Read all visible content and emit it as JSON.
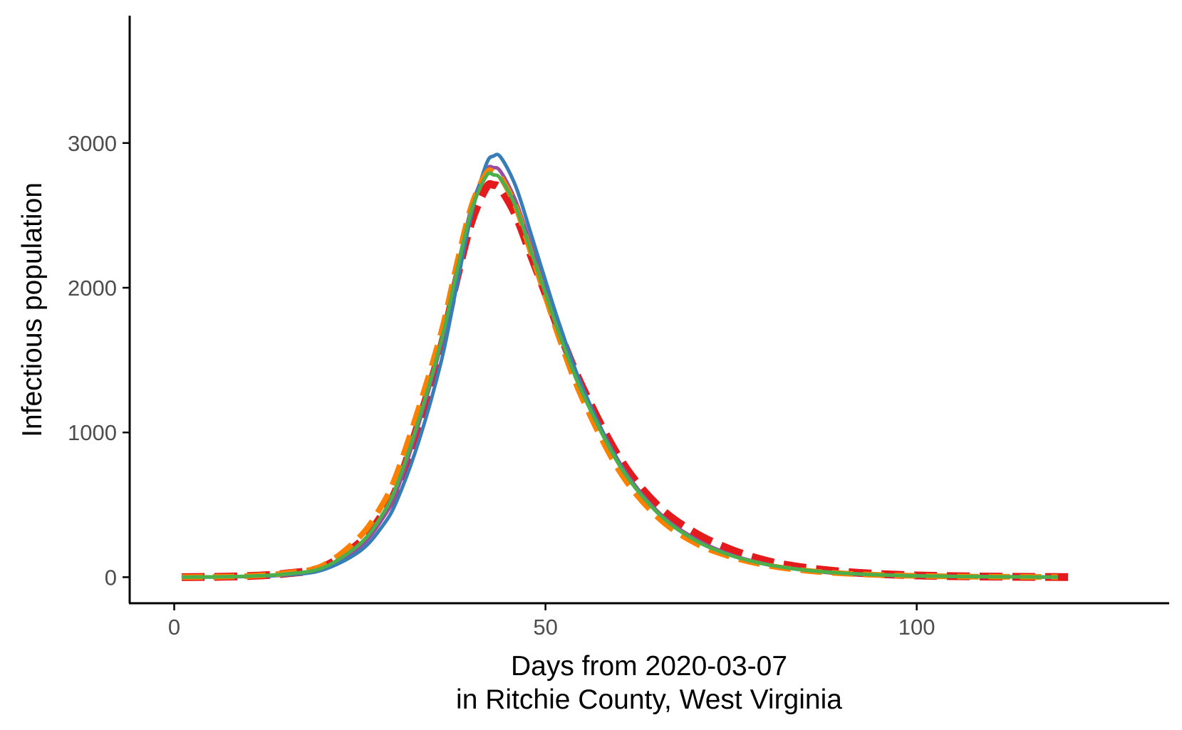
{
  "chart_data": {
    "type": "line",
    "xlabel": "Days from 2020-03-07",
    "xlabel_line2": "in Ritchie County, West Virginia",
    "ylabel": "Infectious population",
    "xlim": [
      -6,
      134
    ],
    "ylim": [
      -180,
      3880
    ],
    "x_ticks": [
      0,
      50,
      100
    ],
    "y_ticks": [
      0,
      1000,
      2000,
      3000
    ],
    "grid": false,
    "legend": "none",
    "series": [
      {
        "color": "#e41a1c",
        "dash": "32 14",
        "width": 11,
        "x": [
          1,
          5,
          10,
          15,
          20,
          25,
          28,
          30,
          33,
          36,
          38,
          40,
          42,
          43,
          44,
          46,
          48,
          50,
          52,
          55,
          60,
          65,
          70,
          75,
          80,
          85,
          90,
          95,
          100,
          105,
          110,
          115,
          120,
          121
        ],
        "y": [
          0,
          2,
          8,
          25,
          70,
          240,
          430,
          620,
          1080,
          1600,
          2050,
          2450,
          2690,
          2710,
          2680,
          2500,
          2230,
          1960,
          1680,
          1310,
          820,
          500,
          310,
          190,
          110,
          65,
          38,
          22,
          12,
          7,
          4,
          2,
          1,
          1
        ]
      },
      {
        "color": "#984ea3",
        "dash": "",
        "width": 5,
        "x": [
          1,
          5,
          10,
          15,
          20,
          25,
          28,
          30,
          33,
          36,
          38,
          40,
          42,
          43,
          44,
          46,
          48,
          50,
          52,
          55,
          60,
          65,
          70,
          75,
          80,
          85,
          90,
          95,
          100,
          105,
          110,
          115,
          119
        ],
        "y": [
          0,
          2,
          6,
          20,
          60,
          210,
          400,
          600,
          1070,
          1620,
          2100,
          2550,
          2810,
          2830,
          2800,
          2600,
          2300,
          2000,
          1700,
          1300,
          790,
          460,
          270,
          155,
          88,
          50,
          28,
          16,
          9,
          5,
          3,
          2,
          1
        ]
      },
      {
        "color": "#377eb8",
        "dash": "",
        "width": 5,
        "x": [
          1,
          5,
          10,
          15,
          20,
          25,
          28,
          30,
          33,
          36,
          38,
          40,
          42,
          43,
          44,
          46,
          48,
          50,
          52,
          55,
          60,
          65,
          70,
          75,
          80,
          85,
          90,
          95,
          100,
          105,
          110,
          115,
          119
        ],
        "y": [
          0,
          1,
          5,
          15,
          50,
          180,
          350,
          530,
          950,
          1500,
          2000,
          2500,
          2850,
          2910,
          2900,
          2700,
          2380,
          2050,
          1730,
          1310,
          780,
          450,
          260,
          150,
          85,
          48,
          27,
          15,
          8,
          5,
          3,
          2,
          1
        ]
      },
      {
        "color": "#ff7f00",
        "dash": "30 14",
        "width": 8,
        "x": [
          1,
          5,
          10,
          15,
          20,
          25,
          28,
          30,
          33,
          36,
          38,
          40,
          42,
          43,
          44,
          46,
          48,
          50,
          52,
          55,
          60,
          65,
          70,
          75,
          80,
          85,
          90,
          95,
          100,
          105,
          110,
          115,
          119
        ],
        "y": [
          0,
          2,
          8,
          28,
          80,
          280,
          500,
          720,
          1180,
          1700,
          2150,
          2560,
          2790,
          2800,
          2760,
          2560,
          2250,
          1940,
          1630,
          1230,
          730,
          420,
          240,
          140,
          80,
          45,
          26,
          15,
          9,
          5,
          3,
          2,
          1
        ]
      },
      {
        "color": "#4daf4a",
        "dash": "",
        "width": 5,
        "x": [
          1,
          5,
          10,
          15,
          20,
          25,
          28,
          30,
          33,
          36,
          38,
          40,
          42,
          43,
          44,
          46,
          48,
          50,
          52,
          55,
          60,
          65,
          70,
          75,
          80,
          85,
          90,
          95,
          100,
          105,
          110,
          115,
          119
        ],
        "y": [
          0,
          2,
          7,
          22,
          65,
          230,
          430,
          640,
          1100,
          1640,
          2100,
          2530,
          2770,
          2780,
          2750,
          2560,
          2260,
          1960,
          1660,
          1270,
          770,
          450,
          260,
          150,
          86,
          49,
          28,
          16,
          9,
          5,
          3,
          2,
          1
        ]
      }
    ]
  }
}
